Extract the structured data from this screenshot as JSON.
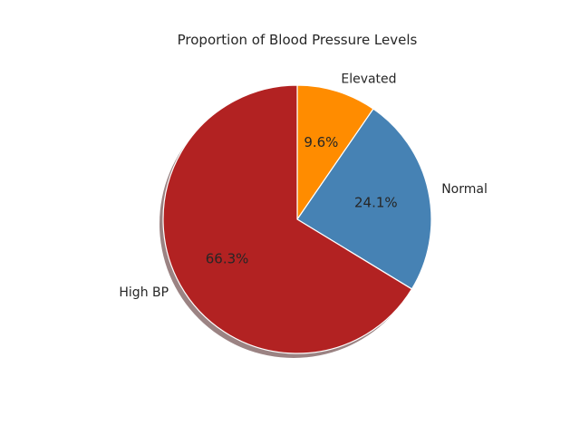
{
  "chart_data": {
    "type": "pie",
    "title": "Proportion of Blood Pressure Levels",
    "slices": [
      {
        "label": "Elevated",
        "value": 9.6,
        "pct_label": "9.6%",
        "color": "#ff8c00"
      },
      {
        "label": "Normal",
        "value": 24.1,
        "pct_label": "24.1%",
        "color": "#4682b4"
      },
      {
        "label": "High BP",
        "value": 66.3,
        "pct_label": "66.3%",
        "color": "#b22222"
      }
    ],
    "start_angle_deg": 90,
    "direction": "clockwise",
    "shadow": true,
    "edge_color": "#ffffff"
  }
}
